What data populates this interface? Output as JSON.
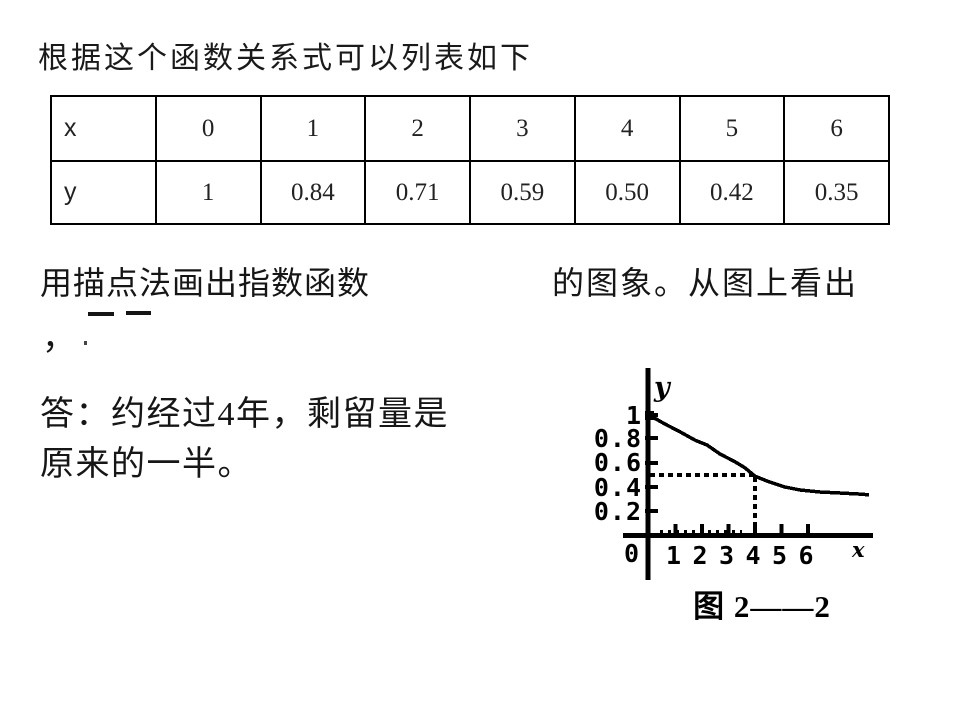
{
  "title": "根据这个函数关系式可以列表如下",
  "table": {
    "rows": [
      {
        "header": "x",
        "values": [
          "0",
          "1",
          "2",
          "3",
          "4",
          "5",
          "6"
        ]
      },
      {
        "header": "y",
        "values": [
          "1",
          "0.84",
          "0.71",
          "0.59",
          "0.50",
          "0.42",
          "0.35"
        ]
      }
    ]
  },
  "paragraph": {
    "before_formula": "用描点法画出指数函数",
    "after_formula": "的图象。从图上看出",
    "comma": "，"
  },
  "answer": {
    "line1": "答：约经过4年，剩留量是",
    "line2": "原来的一半。"
  },
  "figure": {
    "caption": "图 2——2",
    "y_axis_label": "y",
    "x_axis_label": "x"
  },
  "chart_data": {
    "type": "line",
    "title": "",
    "xlabel": "x",
    "ylabel": "y",
    "x": [
      0,
      1,
      2,
      3,
      4,
      5,
      6
    ],
    "y": [
      1,
      0.84,
      0.71,
      0.59,
      0.5,
      0.42,
      0.35
    ],
    "x_ticks": [
      "1",
      "2",
      "3",
      "4",
      "5",
      "6"
    ],
    "y_ticks": [
      "1",
      "0.8",
      "0.6",
      "0.4",
      "0.2"
    ],
    "origin_label": "0",
    "xlim": [
      0,
      8.5
    ],
    "ylim": [
      0,
      1.15
    ],
    "grid": false,
    "legend": "none",
    "guide": {
      "x": 4,
      "y": 0.5
    },
    "curve_points": [
      [
        0,
        1.0
      ],
      [
        0.6,
        0.925
      ],
      [
        1.17,
        0.86
      ],
      [
        1.74,
        0.79
      ],
      [
        2.19,
        0.75
      ],
      [
        2.68,
        0.675
      ],
      [
        3.25,
        0.61
      ],
      [
        3.62,
        0.56
      ],
      [
        4.0,
        0.49
      ],
      [
        4.57,
        0.44
      ],
      [
        5.13,
        0.4
      ],
      [
        5.7,
        0.375
      ],
      [
        6.45,
        0.358
      ],
      [
        7.2,
        0.35
      ],
      [
        7.9,
        0.342
      ],
      [
        8.3,
        0.335
      ]
    ],
    "annotation": "dashed guide lines meet curve at (4, 0.5)"
  }
}
